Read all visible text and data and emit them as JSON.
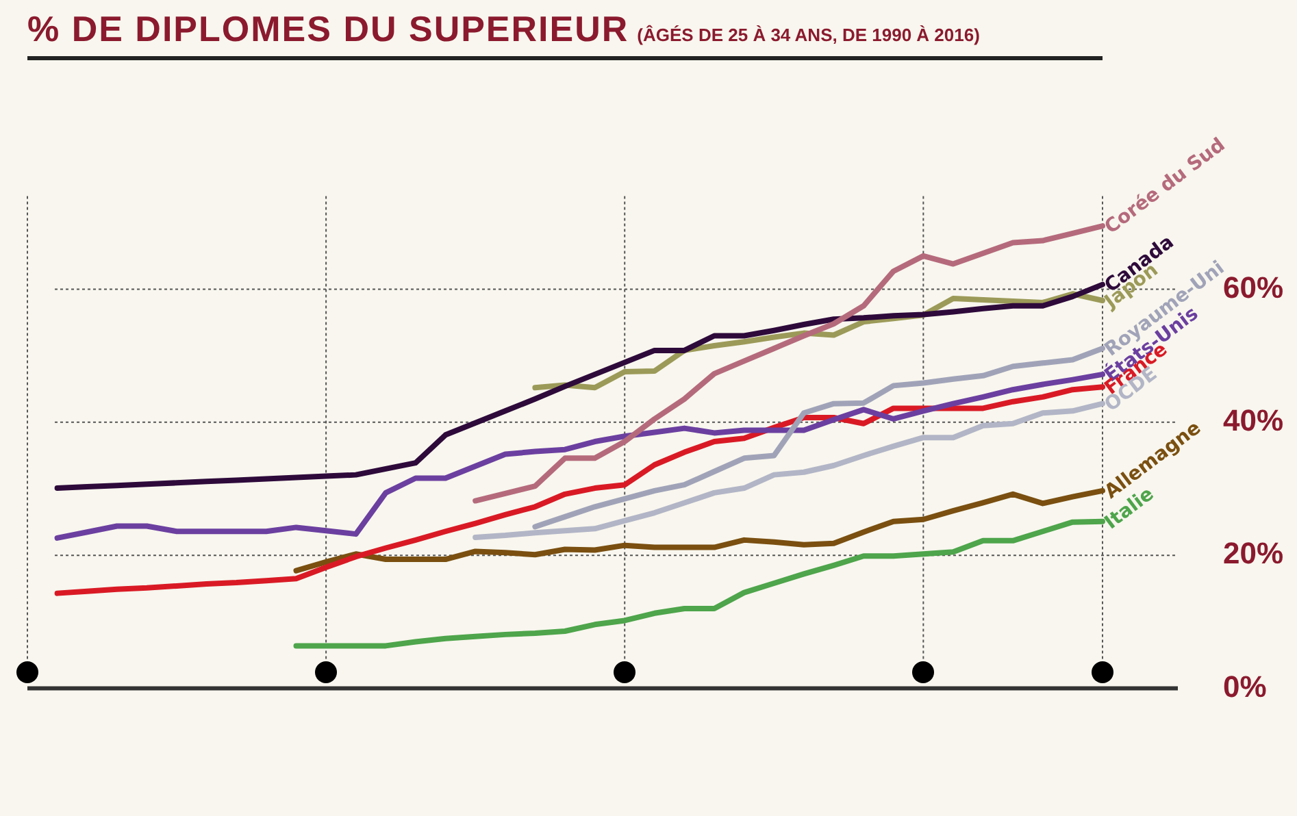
{
  "chart_data": {
    "type": "line",
    "title": "% DE DIPLOMES DU SUPERIEUR",
    "subtitle": "(ÂGÉS DE 25 À 34 ANS, DE 1990 À 2016)",
    "categories": [
      null,
      null,
      null,
      null,
      null,
      null,
      null,
      null,
      null,
      null,
      null,
      null,
      null,
      null,
      null,
      null,
      null,
      null,
      null,
      null,
      null,
      null,
      null,
      null,
      null,
      null,
      null,
      null,
      null,
      null,
      null,
      null,
      null,
      null,
      null,
      null,
      null
    ],
    "ylim": [
      0,
      74
    ],
    "yticks": [
      {
        "value": 0,
        "label": "0%"
      },
      {
        "value": 20,
        "label": "20%"
      },
      {
        "value": 40,
        "label": "40%"
      },
      {
        "value": 60,
        "label": "60%"
      }
    ],
    "grid": true,
    "tick_labels": "y",
    "series": [
      {
        "name": "Corée du Sud",
        "color": "#b56a7c",
        "values": [
          null,
          null,
          null,
          null,
          null,
          null,
          null,
          null,
          null,
          null,
          null,
          null,
          null,
          null,
          null,
          28.2,
          29.3,
          30.4,
          34.6,
          34.6,
          37.1,
          40.5,
          43.5,
          47.3,
          49.2,
          51.1,
          53,
          54.8,
          57.5,
          62.7,
          65,
          63.8,
          65.4,
          67,
          67.3,
          68.4,
          69.5
        ]
      },
      {
        "name": "Canada",
        "color": "#2e0a3b",
        "values": [
          null,
          30.1,
          30.3,
          30.5,
          30.7,
          30.9,
          31.1,
          31.3,
          31.5,
          31.7,
          31.9,
          32.1,
          33,
          33.9,
          38.1,
          39.9,
          41.7,
          43.5,
          45.4,
          47.2,
          49,
          50.8,
          50.8,
          53,
          53,
          53.8,
          54.7,
          55.5,
          55.7,
          56,
          56.2,
          56.6,
          57.1,
          57.5,
          57.5,
          58.9,
          60.7
        ]
      },
      {
        "name": "Japon",
        "color": "#9c9a58",
        "values": [
          null,
          null,
          null,
          null,
          null,
          null,
          null,
          null,
          null,
          null,
          null,
          null,
          null,
          null,
          null,
          null,
          null,
          45.2,
          45.6,
          45.2,
          47.6,
          47.7,
          50.8,
          51.5,
          52.1,
          52.8,
          53.4,
          53.1,
          55.1,
          55.6,
          56.1,
          58.6,
          58.4,
          58.2,
          58,
          59.3,
          58.3
        ]
      },
      {
        "name": "Royaume-Uni",
        "color": "#a0a3b8",
        "values": [
          null,
          null,
          null,
          null,
          null,
          null,
          null,
          null,
          null,
          null,
          null,
          null,
          null,
          null,
          null,
          null,
          null,
          24.3,
          25.8,
          27.3,
          28.5,
          29.7,
          30.6,
          32.6,
          34.6,
          35,
          41.4,
          42.8,
          42.9,
          45.5,
          45.9,
          46.5,
          47,
          48.4,
          48.9,
          49.4,
          51.1
        ]
      },
      {
        "name": "États-Unis",
        "color": "#6b3fa0",
        "values": [
          null,
          22.6,
          23.5,
          24.4,
          24.4,
          23.6,
          23.6,
          23.6,
          23.6,
          24.2,
          23.7,
          23.2,
          29.4,
          31.6,
          31.6,
          33.4,
          35.2,
          35.6,
          35.9,
          37.1,
          37.9,
          38.5,
          39.1,
          38.4,
          38.8,
          38.8,
          38.8,
          40.4,
          41.9,
          40.5,
          41.7,
          42.8,
          43.8,
          44.9,
          45.7,
          46.4,
          47.2
        ]
      },
      {
        "name": "France",
        "color": "#d91a25",
        "values": [
          null,
          14.3,
          14.6,
          14.9,
          15.1,
          15.4,
          15.7,
          15.9,
          16.2,
          16.5,
          18.2,
          19.8,
          21.1,
          22.3,
          23.6,
          24.8,
          26.1,
          27.3,
          29.2,
          30.1,
          30.6,
          33.6,
          35.5,
          37.1,
          37.6,
          39.2,
          40.7,
          40.7,
          39.8,
          42.1,
          42.1,
          42.1,
          42.1,
          43.1,
          43.8,
          44.9,
          45.3
        ]
      },
      {
        "name": "OCDE",
        "color": "#b2b5c6",
        "values": [
          null,
          null,
          null,
          null,
          null,
          null,
          null,
          null,
          null,
          null,
          null,
          null,
          null,
          null,
          null,
          22.7,
          23,
          23.4,
          23.7,
          24,
          25.2,
          26.4,
          27.9,
          29.4,
          30.1,
          32.1,
          32.5,
          33.5,
          35,
          36.4,
          37.7,
          37.7,
          39.5,
          39.8,
          41.4,
          41.7,
          42.8
        ]
      },
      {
        "name": "Allemagne",
        "color": "#7a4f10",
        "values": [
          null,
          null,
          null,
          null,
          null,
          null,
          null,
          null,
          null,
          17.7,
          19,
          20.2,
          19.4,
          19.4,
          19.4,
          20.6,
          20.4,
          20.1,
          20.9,
          20.8,
          21.5,
          21.2,
          21.2,
          21.2,
          22.3,
          22,
          21.6,
          21.8,
          23.5,
          25.1,
          25.4,
          26.7,
          27.9,
          29.2,
          27.8,
          28.8,
          29.7
        ]
      },
      {
        "name": "Italie",
        "color": "#4ea54b",
        "values": [
          null,
          null,
          null,
          null,
          null,
          null,
          null,
          null,
          null,
          6.4,
          6.4,
          6.4,
          6.4,
          7,
          7.5,
          7.8,
          8.1,
          8.3,
          8.6,
          9.6,
          10.2,
          11.3,
          12,
          12,
          14.4,
          15.8,
          17.2,
          18.5,
          19.9,
          19.9,
          20.2,
          20.5,
          22.2,
          22.2,
          23.6,
          25,
          25.1
        ]
      }
    ]
  }
}
